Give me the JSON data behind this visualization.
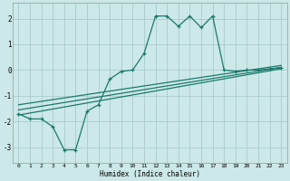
{
  "xlabel": "Humidex (Indice chaleur)",
  "background_color": "#cce8e8",
  "grid_color": "#aacccc",
  "line_color": "#1a7a6a",
  "xlim": [
    -0.5,
    23.5
  ],
  "ylim": [
    -3.6,
    2.6
  ],
  "yticks": [
    -3,
    -2,
    -1,
    0,
    1,
    2
  ],
  "xticks": [
    0,
    1,
    2,
    3,
    4,
    5,
    6,
    7,
    8,
    9,
    10,
    11,
    12,
    13,
    14,
    15,
    16,
    17,
    18,
    19,
    20,
    21,
    22,
    23
  ],
  "curve_x": [
    0,
    1,
    2,
    3,
    4,
    5,
    6,
    7,
    8,
    9,
    10,
    11,
    12,
    13,
    14,
    15,
    16,
    17,
    18,
    19,
    20,
    21,
    22,
    23
  ],
  "curve_y": [
    -1.7,
    -1.9,
    -1.9,
    -2.2,
    -3.1,
    -3.1,
    -1.6,
    -1.35,
    -0.35,
    -0.05,
    0.0,
    0.65,
    2.1,
    2.1,
    1.7,
    2.1,
    1.65,
    2.1,
    0.0,
    -0.05,
    0.0,
    0.0,
    0.05,
    0.1
  ],
  "line1_x": [
    0,
    23
  ],
  "line1_y": [
    -1.75,
    0.05
  ],
  "line2_x": [
    0,
    23
  ],
  "line2_y": [
    -1.55,
    0.1
  ],
  "line3_x": [
    0,
    23
  ],
  "line3_y": [
    -1.35,
    0.18
  ]
}
